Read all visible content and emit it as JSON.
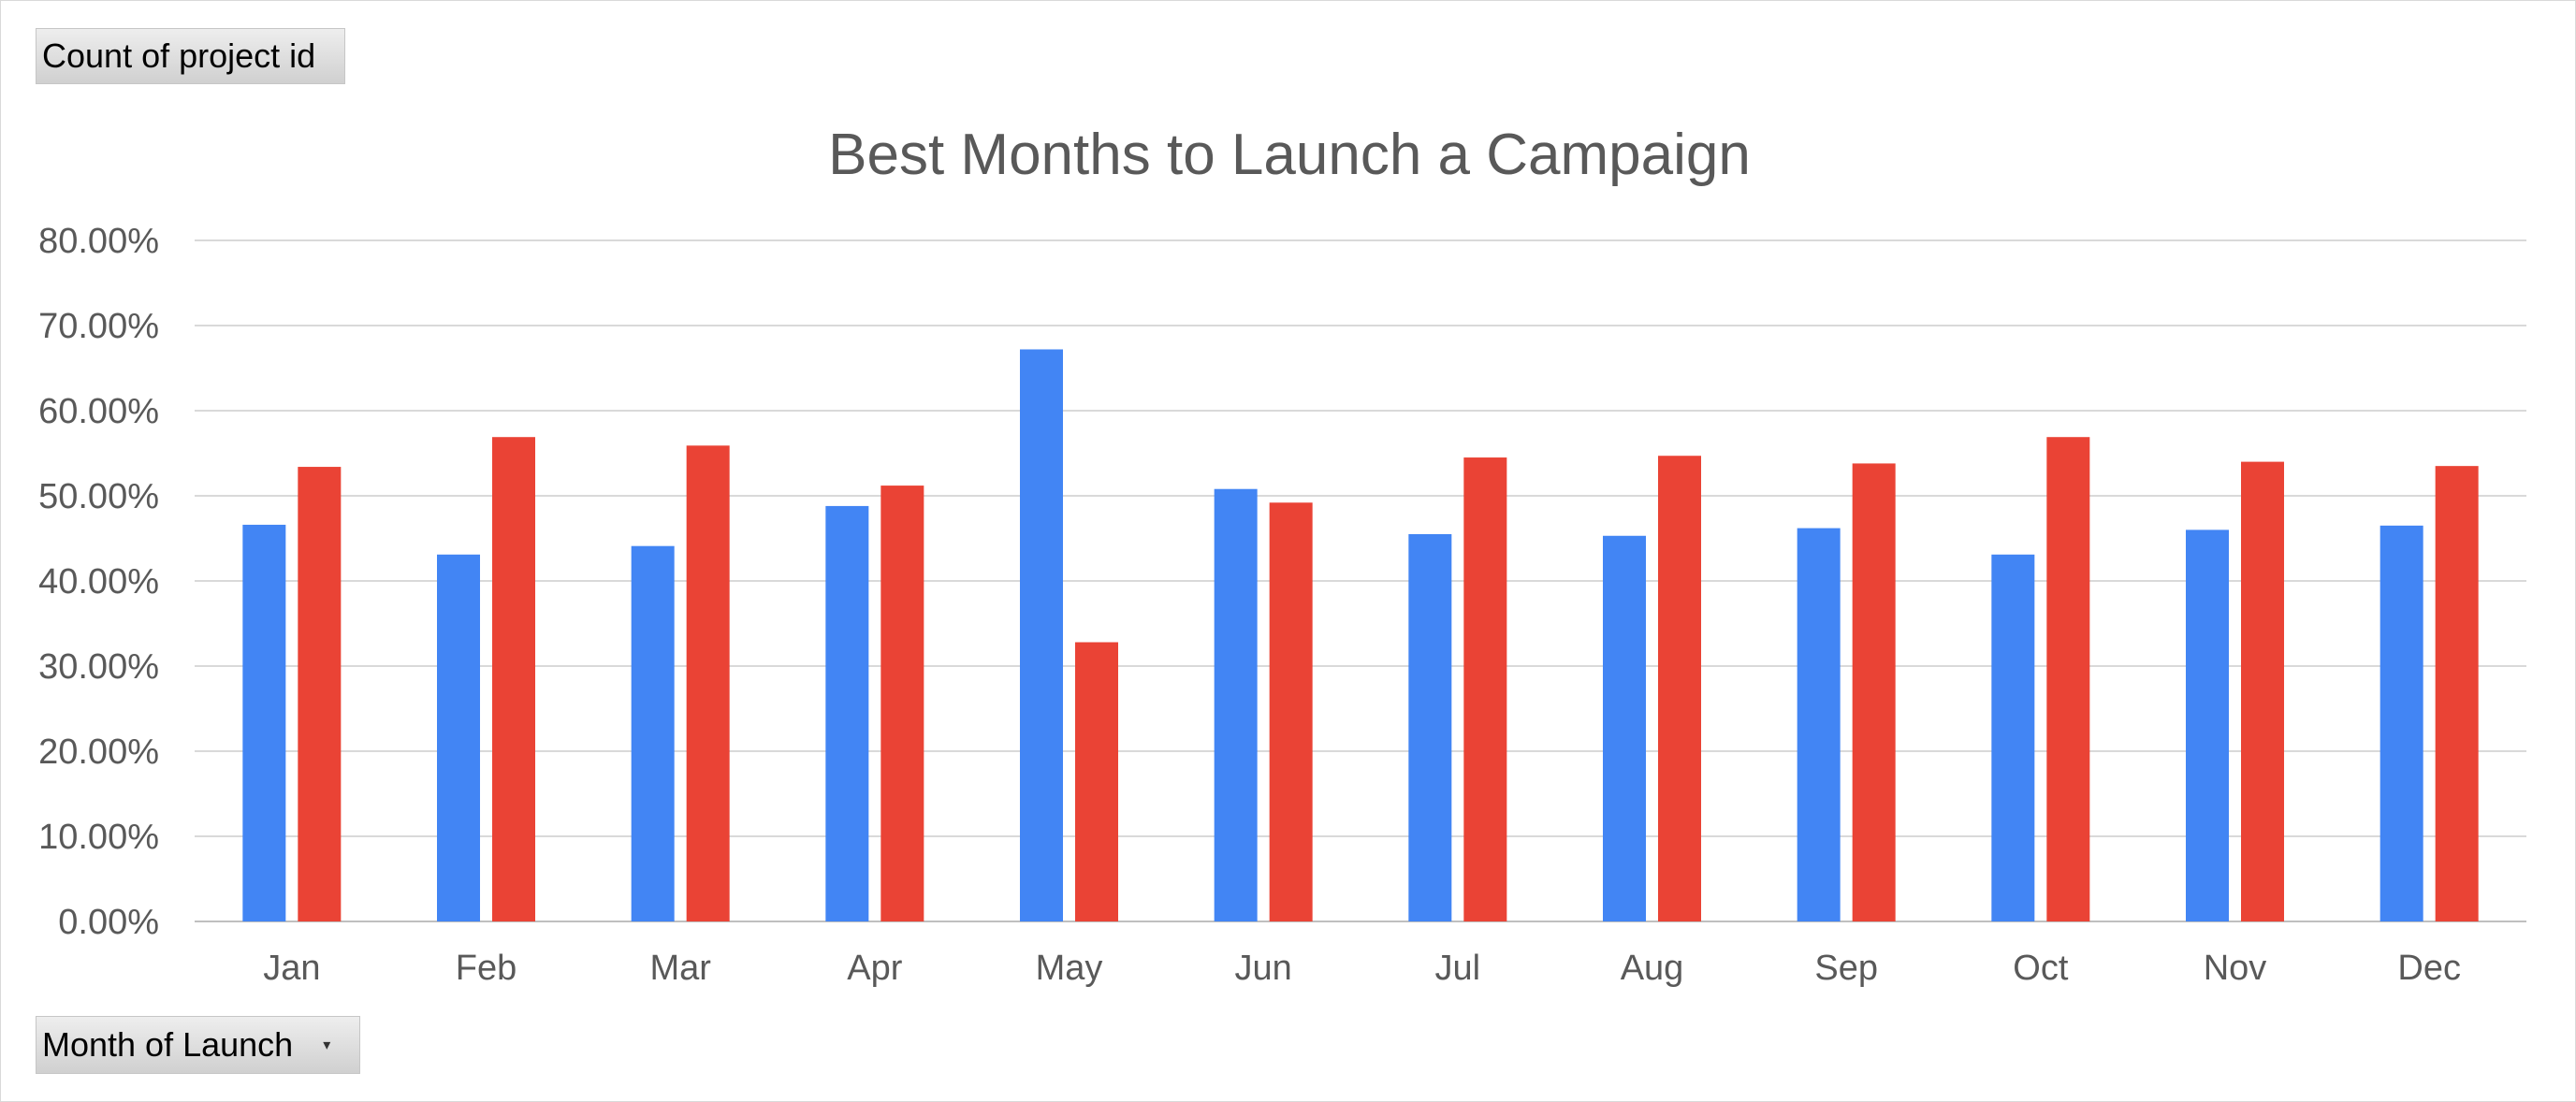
{
  "pivot": {
    "values_field": "Count of project id",
    "axis_field": "Month of Launch"
  },
  "chart_data": {
    "type": "bar",
    "title": "Best Months to Launch a Campaign",
    "categories": [
      "Jan",
      "Feb",
      "Mar",
      "Apr",
      "May",
      "Jun",
      "Jul",
      "Aug",
      "Sep",
      "Oct",
      "Nov",
      "Dec"
    ],
    "series": [
      {
        "color": "#4285F4",
        "values": [
          46.6,
          43.1,
          44.1,
          48.8,
          67.2,
          50.8,
          45.5,
          45.3,
          46.2,
          43.1,
          46.0,
          46.5
        ]
      },
      {
        "color": "#EA4335",
        "values": [
          53.4,
          56.9,
          55.9,
          51.2,
          32.8,
          49.2,
          54.5,
          54.7,
          53.8,
          56.9,
          54.0,
          53.5
        ]
      }
    ],
    "yticks": [
      "0.00%",
      "10.00%",
      "20.00%",
      "30.00%",
      "40.00%",
      "50.00%",
      "60.00%",
      "70.00%",
      "80.00%"
    ],
    "ylim": [
      0,
      80
    ],
    "grid": true
  }
}
